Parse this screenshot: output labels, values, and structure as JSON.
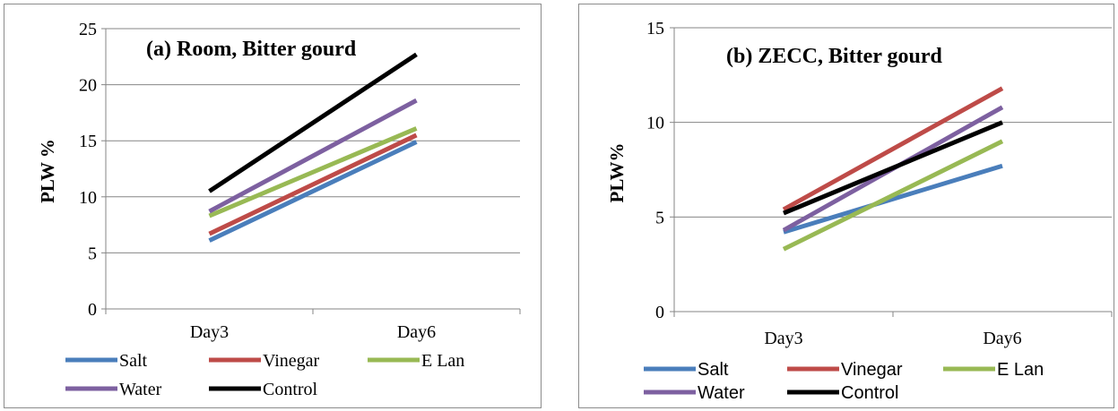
{
  "chart_data": [
    {
      "type": "line",
      "title": "(a) Room, Bitter gourd",
      "xlabel": "",
      "ylabel": "PLW %",
      "categories": [
        "Day3",
        "Day6"
      ],
      "ylim": [
        0,
        25
      ],
      "yticks": [
        0,
        5,
        10,
        15,
        20,
        25
      ],
      "grid": true,
      "legend": "bottom",
      "series": [
        {
          "name": "Salt",
          "color": "#4a7ebb",
          "values": [
            6.1,
            14.9
          ]
        },
        {
          "name": "Vinegar",
          "color": "#be4b48",
          "values": [
            6.7,
            15.5
          ]
        },
        {
          "name": "E Lan",
          "color": "#98b954",
          "values": [
            8.3,
            16.1
          ]
        },
        {
          "name": "Water",
          "color": "#7d60a0",
          "values": [
            8.7,
            18.6
          ]
        },
        {
          "name": "Control",
          "color": "#000000",
          "values": [
            10.5,
            22.7
          ]
        }
      ]
    },
    {
      "type": "line",
      "title": "(b) ZECC, Bitter gourd",
      "xlabel": "",
      "ylabel": "PLW%",
      "categories": [
        "Day3",
        "Day6"
      ],
      "ylim": [
        0,
        15
      ],
      "yticks": [
        0,
        5,
        10,
        15
      ],
      "grid": true,
      "legend": "bottom",
      "series": [
        {
          "name": "Salt",
          "color": "#4a7ebb",
          "values": [
            4.2,
            7.7
          ]
        },
        {
          "name": "Vinegar",
          "color": "#be4b48",
          "values": [
            5.4,
            11.8
          ]
        },
        {
          "name": "E Lan",
          "color": "#98b954",
          "values": [
            3.3,
            9.0
          ]
        },
        {
          "name": "Water",
          "color": "#7d60a0",
          "values": [
            4.3,
            10.8
          ]
        },
        {
          "name": "Control",
          "color": "#000000",
          "values": [
            5.2,
            10.0
          ]
        }
      ]
    }
  ]
}
